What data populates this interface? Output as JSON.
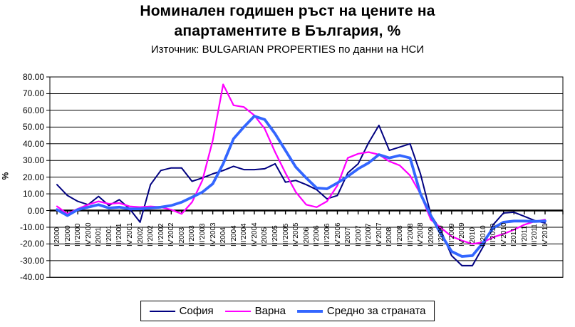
{
  "title_line1": "Номинален годишен ръст на цените на",
  "title_line2": "апартаментите в България, %",
  "subtitle": "Източник: BULGARIAN PROPERTIES по данни на НСИ",
  "y_axis": {
    "unit_label": "%",
    "tick_labels": [
      "80.00",
      "70.00",
      "60.00",
      "50.00",
      "40.00",
      "30.00",
      "20.00",
      "10.00",
      "0.00",
      "-10.00",
      "-20.00",
      "-30.00",
      "-40.00"
    ]
  },
  "chart_data": {
    "type": "line",
    "title": "Номинален годишен ръст на цените на апартаментите в България, %",
    "subtitle": "Източник: BULGARIAN PROPERTIES по данни на НСИ",
    "ylabel": "%",
    "ylim": [
      -40,
      80
    ],
    "ytick_step": 10,
    "grid": "horizontal",
    "legend_position": "bottom",
    "categories": [
      "I'2000",
      "II'2000",
      "III'2000",
      "IV'2000",
      "I'2001",
      "II'2001",
      "III'2001",
      "IV'2001",
      "I'2002",
      "II'2002",
      "III'2002",
      "IV'2002",
      "I'2003",
      "II'2003",
      "III'2003",
      "IV'2003",
      "I'2004",
      "II'2004",
      "III'2004",
      "IV'2004",
      "I'2005",
      "II'2005",
      "III'2005",
      "IV'2005",
      "I'2006",
      "II'2006",
      "III'2006",
      "IV'2006",
      "I'2007",
      "II'2007",
      "III'2007",
      "IV'2007",
      "I'2008",
      "II'2008",
      "III'2008",
      "IV'2008",
      "I'2009",
      "II'2009",
      "III'2009",
      "IV'2009",
      "I'2010",
      "II'2010",
      "III'2010",
      "IV'2010",
      "I'2011",
      "II'2011",
      "III'2011",
      "IV'2011"
    ],
    "series": [
      {
        "name": "София",
        "color": "#000080",
        "stroke_width": 2,
        "values": [
          15.5,
          9,
          5.5,
          3.5,
          8.5,
          3,
          6.5,
          1,
          -7,
          15.5,
          24,
          25.5,
          25.5,
          17.5,
          19.5,
          22,
          24,
          26.5,
          24.5,
          24.5,
          25,
          28,
          17,
          18,
          15.5,
          12.5,
          7,
          9,
          22.5,
          28,
          40.5,
          51,
          36,
          38,
          40,
          22,
          -2.5,
          -12.5,
          -27,
          -33,
          -33,
          -22,
          -8.5,
          -1.5,
          -1,
          -3.5,
          -6,
          -7.5
        ]
      },
      {
        "name": "Варна",
        "color": "#FF00FF",
        "stroke_width": 2.25,
        "values": [
          2.5,
          -2,
          1,
          3.5,
          5.5,
          4,
          4.5,
          2.5,
          2,
          2.5,
          2,
          0.5,
          -2,
          5,
          18,
          42,
          75.5,
          63,
          62,
          57,
          49,
          35,
          22.5,
          11,
          3.5,
          2,
          5.5,
          15,
          31.5,
          34,
          35,
          33.5,
          29.5,
          27,
          21,
          10,
          -5.5,
          -10.5,
          -15.5,
          -18,
          -20,
          -19,
          -16,
          -14,
          -11.5,
          -8.5,
          -6.5,
          -5.5
        ]
      },
      {
        "name": "Средно за страната",
        "color": "#3366FF",
        "stroke_width": 3.8,
        "values": [
          0.5,
          -3,
          0.5,
          2,
          3.5,
          1.5,
          2,
          1,
          1,
          1.5,
          2,
          3,
          5,
          8,
          11,
          16,
          28,
          43,
          50,
          56.5,
          54.5,
          46,
          36,
          26,
          19.5,
          13.5,
          13,
          16.5,
          20.5,
          25,
          28.5,
          33.5,
          31.5,
          33,
          31.5,
          10,
          -3,
          -14.5,
          -24.5,
          -27.5,
          -27,
          -19.5,
          -10.5,
          -7,
          -6.3,
          -6.3,
          -6.5,
          -6.3
        ]
      }
    ]
  }
}
